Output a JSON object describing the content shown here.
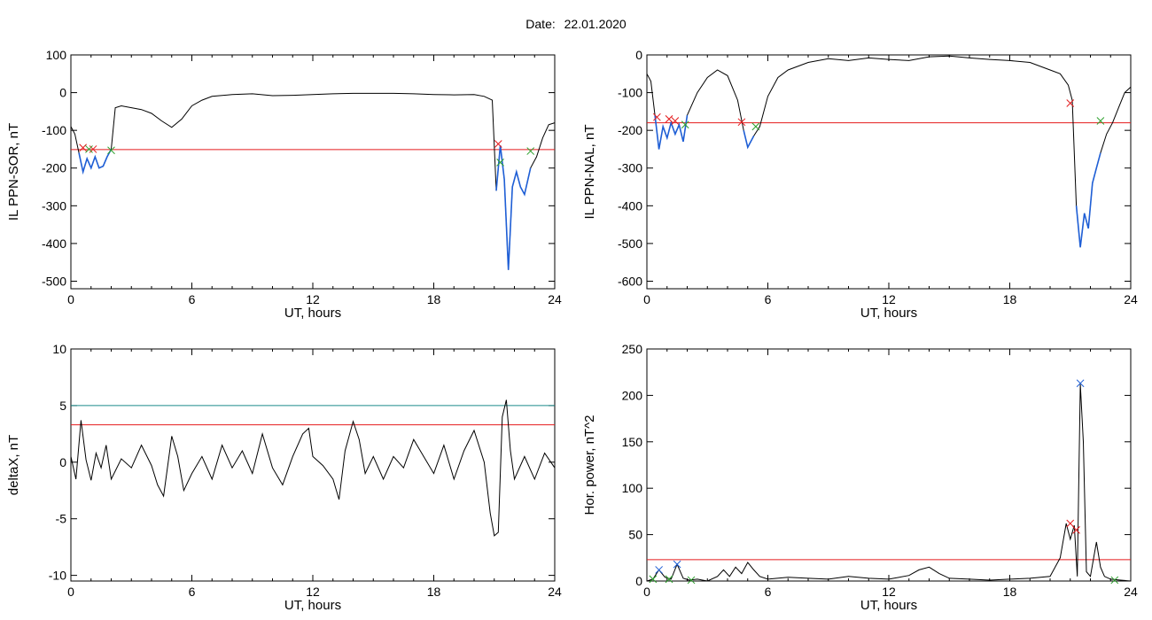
{
  "header": {
    "date_label": "Date:",
    "date_value": "22.01.2020"
  },
  "chart_data": [
    {
      "type": "line",
      "xlabel": "UT, hours",
      "ylabel": "IL PPN-SOR, nT",
      "xlim": [
        0,
        24
      ],
      "ylim": [
        -520,
        100
      ],
      "xticks": [
        0,
        6,
        12,
        18,
        24
      ],
      "yticks": [
        -500,
        -400,
        -300,
        -200,
        -100,
        0,
        100
      ],
      "grid": false,
      "threshold": {
        "value": -151,
        "color": "#e41a1c"
      },
      "series": [
        {
          "color": "#000000",
          "x": [
            0,
            0.2,
            0.4,
            0.6,
            0.8,
            1.0,
            1.2,
            1.4,
            1.6,
            1.8,
            2.0,
            2.2,
            2.5,
            3.0,
            3.5,
            4.0,
            4.5,
            5.0,
            5.5,
            6.0,
            6.5,
            7.0,
            8.0,
            9.0,
            10.0,
            11.0,
            12.0,
            13.0,
            14.0,
            15.0,
            16.0,
            17.0,
            18.0,
            19.0,
            20.0,
            20.5,
            20.9,
            21.1,
            21.3,
            21.5,
            21.7,
            21.9,
            22.1,
            22.3,
            22.5,
            22.8,
            23.1,
            23.4,
            23.7,
            24.0
          ],
          "y": [
            -90,
            -110,
            -160,
            -210,
            -175,
            -200,
            -170,
            -200,
            -195,
            -170,
            -150,
            -40,
            -35,
            -40,
            -45,
            -55,
            -75,
            -92,
            -70,
            -35,
            -20,
            -10,
            -5,
            -3,
            -8,
            -7,
            -5,
            -3,
            -2,
            -2,
            -2,
            -3,
            -5,
            -6,
            -5,
            -10,
            -20,
            -260,
            -140,
            -230,
            -470,
            -250,
            -210,
            -250,
            -270,
            -200,
            -170,
            -120,
            -85,
            -80
          ]
        }
      ],
      "highlight": {
        "color": "#1f5fd6",
        "ranges": [
          [
            0.4,
            2.1
          ],
          [
            21.0,
            22.8
          ]
        ]
      },
      "markers": [
        {
          "x": 0.6,
          "y": -146,
          "color": "#e41a1c"
        },
        {
          "x": 1.1,
          "y": -150,
          "color": "#e41a1c"
        },
        {
          "x": 0.9,
          "y": -150,
          "color": "#2ca02c"
        },
        {
          "x": 2.0,
          "y": -153,
          "color": "#2ca02c"
        },
        {
          "x": 21.2,
          "y": -136,
          "color": "#e41a1c"
        },
        {
          "x": 21.3,
          "y": -185,
          "color": "#2ca02c"
        },
        {
          "x": 22.8,
          "y": -155,
          "color": "#2ca02c"
        }
      ]
    },
    {
      "type": "line",
      "xlabel": "UT, hours",
      "ylabel": "IL PPN-NAL, nT",
      "xlim": [
        0,
        24
      ],
      "ylim": [
        -620,
        0
      ],
      "xticks": [
        0,
        6,
        12,
        18,
        24
      ],
      "yticks": [
        -600,
        -500,
        -400,
        -300,
        -200,
        -100,
        0
      ],
      "grid": false,
      "threshold": {
        "value": -180,
        "color": "#e41a1c"
      },
      "series": [
        {
          "color": "#000000",
          "x": [
            0,
            0.2,
            0.4,
            0.6,
            0.8,
            1.0,
            1.2,
            1.4,
            1.6,
            1.8,
            2.0,
            2.5,
            3.0,
            3.5,
            4.0,
            4.5,
            4.8,
            5.0,
            5.3,
            5.6,
            6.0,
            6.5,
            7.0,
            8.0,
            9.0,
            10.0,
            11.0,
            12.0,
            13.0,
            14.0,
            15.0,
            16.0,
            17.0,
            18.0,
            19.0,
            20.0,
            20.5,
            20.9,
            21.1,
            21.3,
            21.5,
            21.7,
            21.9,
            22.1,
            22.3,
            22.5,
            22.8,
            23.1,
            23.4,
            23.7,
            24.0
          ],
          "y": [
            -50,
            -70,
            -160,
            -250,
            -190,
            -220,
            -180,
            -210,
            -185,
            -230,
            -160,
            -100,
            -60,
            -40,
            -55,
            -120,
            -200,
            -245,
            -215,
            -190,
            -110,
            -60,
            -40,
            -20,
            -10,
            -15,
            -8,
            -12,
            -15,
            -5,
            -3,
            -8,
            -12,
            -15,
            -20,
            -40,
            -50,
            -80,
            -120,
            -400,
            -510,
            -420,
            -460,
            -340,
            -300,
            -260,
            -210,
            -180,
            -140,
            -100,
            -85
          ]
        }
      ],
      "highlight": {
        "color": "#1f5fd6",
        "ranges": [
          [
            0.4,
            2.0
          ],
          [
            4.8,
            5.4
          ],
          [
            21.2,
            22.5
          ]
        ]
      },
      "markers": [
        {
          "x": 0.5,
          "y": -165,
          "color": "#e41a1c"
        },
        {
          "x": 1.1,
          "y": -170,
          "color": "#e41a1c"
        },
        {
          "x": 1.4,
          "y": -175,
          "color": "#e41a1c"
        },
        {
          "x": 1.9,
          "y": -185,
          "color": "#2ca02c"
        },
        {
          "x": 4.7,
          "y": -178,
          "color": "#e41a1c"
        },
        {
          "x": 5.4,
          "y": -190,
          "color": "#2ca02c"
        },
        {
          "x": 21.0,
          "y": -128,
          "color": "#e41a1c"
        },
        {
          "x": 22.5,
          "y": -175,
          "color": "#2ca02c"
        }
      ]
    },
    {
      "type": "line",
      "xlabel": "UT, hours",
      "ylabel": "deltaX, nT",
      "xlim": [
        0,
        24
      ],
      "ylim": [
        -10.5,
        10
      ],
      "xticks": [
        0,
        6,
        12,
        18,
        24
      ],
      "yticks": [
        -10,
        -5,
        0,
        5,
        10
      ],
      "grid": false,
      "thresholds": [
        {
          "value": 5,
          "color": "#1a8a8a"
        },
        {
          "value": 3.3,
          "color": "#e41a1c"
        }
      ],
      "series": [
        {
          "color": "#000000",
          "x": [
            0,
            0.25,
            0.5,
            0.75,
            1.0,
            1.25,
            1.5,
            1.75,
            2.0,
            2.5,
            3.0,
            3.5,
            4.0,
            4.3,
            4.6,
            5.0,
            5.3,
            5.6,
            6.0,
            6.5,
            7.0,
            7.5,
            8.0,
            8.5,
            9.0,
            9.5,
            10.0,
            10.5,
            11.0,
            11.5,
            11.8,
            12.0,
            12.5,
            13.0,
            13.3,
            13.6,
            14.0,
            14.3,
            14.6,
            15.0,
            15.5,
            16.0,
            16.5,
            17.0,
            17.5,
            18.0,
            18.5,
            19.0,
            19.5,
            20.0,
            20.5,
            20.8,
            21.0,
            21.2,
            21.4,
            21.6,
            21.8,
            22.0,
            22.5,
            23.0,
            23.5,
            24.0
          ],
          "y": [
            0.5,
            -1.5,
            3.7,
            0.2,
            -1.6,
            0.8,
            -0.5,
            1.5,
            -1.5,
            0.3,
            -0.5,
            1.5,
            -0.3,
            -2.0,
            -3.0,
            2.3,
            0.5,
            -2.5,
            -1.0,
            0.5,
            -1.5,
            1.5,
            -0.5,
            1.0,
            -1.0,
            2.5,
            -0.5,
            -2.0,
            0.5,
            2.5,
            3.0,
            0.5,
            -0.3,
            -1.5,
            -3.3,
            1.0,
            3.6,
            2.0,
            -1.0,
            0.5,
            -1.5,
            0.5,
            -0.5,
            2.0,
            0.5,
            -1.0,
            1.5,
            -1.5,
            1.0,
            2.8,
            0,
            -4.5,
            -6.5,
            -6.2,
            4.0,
            5.5,
            1.0,
            -1.5,
            0.5,
            -1.5,
            0.8,
            -0.5
          ]
        }
      ]
    },
    {
      "type": "line",
      "xlabel": "UT, hours",
      "ylabel": "Hor. power, nT^2",
      "xlim": [
        0,
        24
      ],
      "ylim": [
        0,
        250
      ],
      "xticks": [
        0,
        6,
        12,
        18,
        24
      ],
      "yticks": [
        0,
        50,
        100,
        150,
        200,
        250
      ],
      "grid": false,
      "threshold": {
        "value": 23,
        "color": "#e41a1c"
      },
      "series": [
        {
          "color": "#000000",
          "x": [
            0,
            0.3,
            0.6,
            0.9,
            1.2,
            1.5,
            1.8,
            2.1,
            2.5,
            3.0,
            3.5,
            3.8,
            4.1,
            4.4,
            4.7,
            5.0,
            5.3,
            5.6,
            6.0,
            7.0,
            8.0,
            9.0,
            10.0,
            11.0,
            12.0,
            13.0,
            13.5,
            14.0,
            14.5,
            15.0,
            16.0,
            17.0,
            18.0,
            19.0,
            20.0,
            20.5,
            20.8,
            21.0,
            21.2,
            21.35,
            21.5,
            21.65,
            21.8,
            22.0,
            22.3,
            22.5,
            22.7,
            23.0,
            23.5,
            24.0
          ],
          "y": [
            0,
            2,
            12,
            4,
            2,
            18,
            3,
            1,
            2,
            0,
            5,
            12,
            5,
            15,
            8,
            20,
            12,
            5,
            2,
            4,
            3,
            2,
            5,
            3,
            2,
            6,
            12,
            15,
            8,
            3,
            2,
            1,
            2,
            3,
            5,
            25,
            62,
            45,
            60,
            5,
            212,
            150,
            10,
            5,
            42,
            15,
            5,
            2,
            1,
            0
          ]
        }
      ],
      "markers": [
        {
          "x": 0.3,
          "y": 2,
          "color": "#2ca02c"
        },
        {
          "x": 0.6,
          "y": 12,
          "color": "#1f5fd6"
        },
        {
          "x": 1.1,
          "y": 2,
          "color": "#2ca02c"
        },
        {
          "x": 1.5,
          "y": 18,
          "color": "#1f5fd6"
        },
        {
          "x": 2.2,
          "y": 1,
          "color": "#2ca02c"
        },
        {
          "x": 21.0,
          "y": 62,
          "color": "#e41a1c"
        },
        {
          "x": 21.3,
          "y": 55,
          "color": "#e41a1c"
        },
        {
          "x": 21.5,
          "y": 213,
          "color": "#1f5fd6"
        },
        {
          "x": 23.2,
          "y": 1,
          "color": "#2ca02c"
        }
      ]
    }
  ]
}
